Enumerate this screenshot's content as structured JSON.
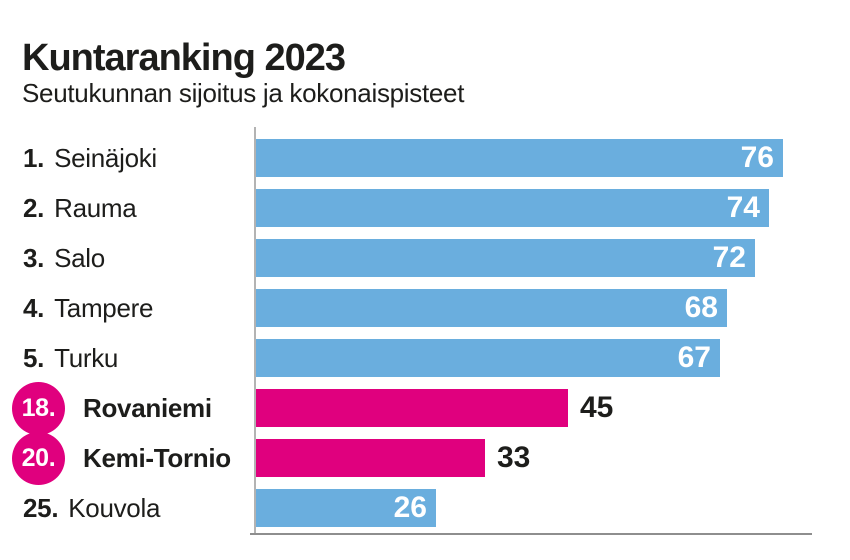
{
  "title": "Kuntaranking 2023",
  "subtitle": "Seutukunnan sijoitus ja kokonaispisteet",
  "colors": {
    "blue": "#6AAEDE",
    "pink": "#E0007E",
    "text": "#1D1D1B",
    "axis_line": "#B3B3B3",
    "baseline": "#8E8E8E",
    "value_inside": "#FFFFFF"
  },
  "chart_data": {
    "type": "bar",
    "orientation": "horizontal",
    "title": "Kuntaranking 2023",
    "subtitle": "Seutukunnan sijoitus ja kokonaispisteet",
    "xlim": [
      0,
      80
    ],
    "grid": false,
    "legend": false,
    "rows": [
      {
        "rank": "1.",
        "name": "Seinäjoki",
        "value": 76,
        "highlight": false,
        "value_position": "inside"
      },
      {
        "rank": "2.",
        "name": "Rauma",
        "value": 74,
        "highlight": false,
        "value_position": "inside"
      },
      {
        "rank": "3.",
        "name": "Salo",
        "value": 72,
        "highlight": false,
        "value_position": "inside"
      },
      {
        "rank": "4.",
        "name": "Tampere",
        "value": 68,
        "highlight": false,
        "value_position": "inside"
      },
      {
        "rank": "5.",
        "name": "Turku",
        "value": 67,
        "highlight": false,
        "value_position": "inside"
      },
      {
        "rank": "18.",
        "name": "Rovaniemi",
        "value": 45,
        "highlight": true,
        "value_position": "outside"
      },
      {
        "rank": "20.",
        "name": "Kemi-Tornio",
        "value": 33,
        "highlight": true,
        "value_position": "outside"
      },
      {
        "rank": "25.",
        "name": "Kouvola",
        "value": 26,
        "highlight": false,
        "value_position": "inside"
      }
    ]
  }
}
